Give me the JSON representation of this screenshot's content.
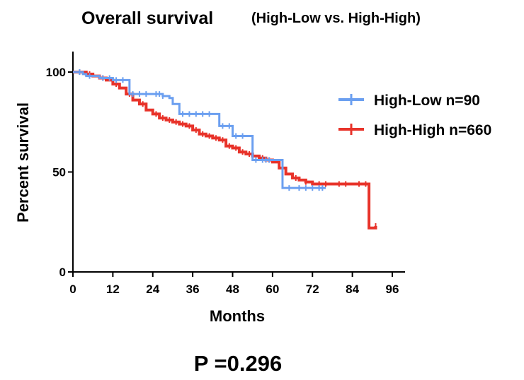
{
  "chart_data": {
    "type": "line",
    "title": "Overall survival",
    "subtitle": "(High-Low vs. High-High)",
    "xlabel": "Months",
    "ylabel": "Percent survival",
    "xlim": [
      0,
      96
    ],
    "ylim": [
      0,
      100
    ],
    "xticks": [
      0,
      12,
      24,
      36,
      48,
      60,
      72,
      84,
      96
    ],
    "yticks": [
      0,
      50,
      100
    ],
    "legend_position": "right",
    "annotation": "P =0.296",
    "series": [
      {
        "name": "High-Low n=90",
        "color": "#6b9ff0",
        "x": [
          0,
          3,
          4,
          6,
          8,
          10,
          12,
          14,
          16,
          17,
          24,
          27,
          29,
          30,
          32,
          38,
          44,
          48,
          54,
          60,
          61,
          63,
          76
        ],
        "y": [
          100,
          99,
          98,
          98,
          97,
          97,
          96,
          96,
          96,
          89,
          89,
          88,
          87,
          84,
          79,
          79,
          73,
          68,
          56,
          56,
          56,
          42,
          42
        ],
        "censor_x": [
          2,
          5,
          9,
          11,
          13,
          15,
          18,
          20,
          22,
          25,
          26,
          27,
          33,
          35,
          37,
          39,
          41,
          45,
          47,
          49,
          51,
          55,
          57,
          58,
          59,
          65,
          68,
          70,
          72,
          74,
          75
        ]
      },
      {
        "name": "High-High n=660",
        "color": "#e8332a",
        "x": [
          0,
          4,
          6,
          8,
          10,
          12,
          14,
          16,
          18,
          20,
          22,
          24,
          26,
          28,
          30,
          32,
          34,
          36,
          38,
          40,
          42,
          44,
          46,
          48,
          50,
          52,
          54,
          56,
          58,
          60,
          62,
          64,
          66,
          68,
          70,
          72,
          78,
          84,
          89,
          91
        ],
        "y": [
          100,
          99,
          98,
          97,
          96,
          94,
          92,
          89,
          86,
          84,
          81,
          79,
          77,
          76,
          75,
          74,
          73,
          71,
          69,
          68,
          67,
          66,
          63,
          62,
          60,
          59,
          58,
          57,
          56,
          55,
          52,
          49,
          47,
          46,
          45,
          44,
          44,
          44,
          22,
          23
        ],
        "censor_x": [
          2,
          5,
          9,
          13,
          17,
          21,
          25,
          27,
          29,
          31,
          33,
          35,
          37,
          39,
          41,
          43,
          45,
          47,
          49,
          51,
          53,
          57,
          59,
          63,
          67,
          70,
          74,
          76,
          80,
          82,
          86,
          88,
          91
        ]
      }
    ]
  }
}
